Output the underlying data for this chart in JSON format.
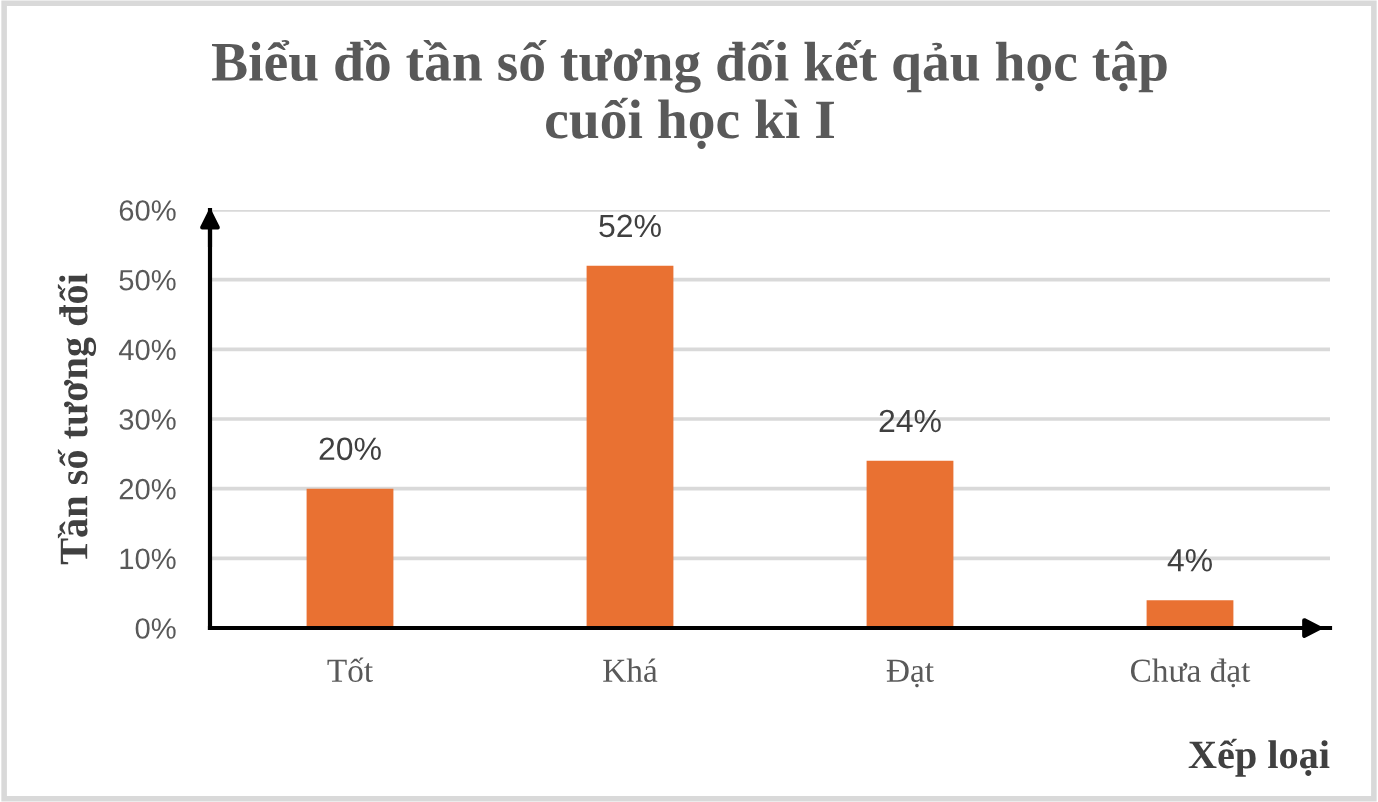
{
  "chart_data": {
    "type": "bar",
    "title": "Biểu đồ tần số tương đối kết qảu học tập\ncuối học kì I",
    "categories": [
      "Tốt",
      "Khá",
      "Đạt",
      "Chưa đạt"
    ],
    "values": [
      20,
      52,
      24,
      4
    ],
    "color": "#e97132",
    "value_labels": [
      "20%",
      "52%",
      "24%",
      "4%"
    ],
    "xlabel": "Xếp loại",
    "ylabel": "Tần số tương đối",
    "ylim": [
      0,
      60
    ],
    "yticks": [
      {
        "value": 0,
        "label": "0%"
      },
      {
        "value": 10,
        "label": "10%"
      },
      {
        "value": 20,
        "label": "20%"
      },
      {
        "value": 30,
        "label": "30%"
      },
      {
        "value": 40,
        "label": "40%"
      },
      {
        "value": 50,
        "label": "50%"
      },
      {
        "value": 60,
        "label": "60%"
      }
    ],
    "grid": "y",
    "legend": false
  }
}
